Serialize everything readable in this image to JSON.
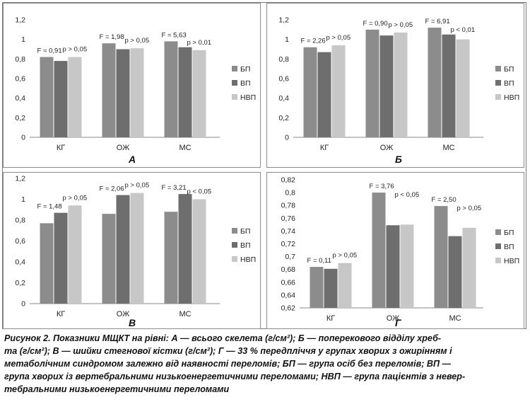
{
  "colors": {
    "bp": "#8c8c8c",
    "vp": "#6e6e6e",
    "nvp": "#c7c7c7",
    "axis": "#888888",
    "text": "#222222"
  },
  "chart_data": [
    {
      "panel": "А",
      "type": "bar",
      "categories": [
        "КГ",
        "ОЖ",
        "МС"
      ],
      "series": [
        {
          "name": "БП",
          "values": [
            0.82,
            0.96,
            0.98
          ]
        },
        {
          "name": "ВП",
          "values": [
            0.78,
            0.9,
            0.92
          ]
        },
        {
          "name": "НВП",
          "values": [
            0.82,
            0.91,
            0.89
          ]
        }
      ],
      "ylim": [
        0,
        1.2
      ],
      "yticks": [
        "0",
        "0,2",
        "0,4",
        "0,6",
        "0,8",
        "1",
        "1,2"
      ],
      "annotations": [
        "F = 0,91",
        "p > 0,05",
        "F = 1,98",
        "p > 0,05",
        "F = 5,63",
        "p > 0,01"
      ],
      "legend": "right"
    },
    {
      "panel": "Б",
      "type": "bar",
      "categories": [
        "КГ",
        "ОЖ",
        "МС"
      ],
      "series": [
        {
          "name": "БП",
          "values": [
            0.92,
            1.1,
            1.12
          ]
        },
        {
          "name": "ВП",
          "values": [
            0.87,
            1.04,
            1.05
          ]
        },
        {
          "name": "НВП",
          "values": [
            0.94,
            1.07,
            1.0
          ]
        }
      ],
      "ylim": [
        0,
        1.2
      ],
      "yticks": [
        "0",
        "0,2",
        "0,4",
        "0,6",
        "0,8",
        "1",
        "1,2"
      ],
      "annotations": [
        "F = 2,26",
        "p > 0,05",
        "F = 0,90",
        "p > 0,05",
        "F = 6,91",
        "p < 0,01"
      ],
      "legend": "right"
    },
    {
      "panel": "В",
      "type": "bar",
      "categories": [
        "КГ",
        "ОЖ",
        "МС"
      ],
      "series": [
        {
          "name": "БП",
          "values": [
            0.77,
            0.86,
            0.88
          ]
        },
        {
          "name": "ВП",
          "values": [
            0.87,
            1.04,
            1.05
          ]
        },
        {
          "name": "НВП",
          "values": [
            0.94,
            1.06,
            1.0
          ]
        }
      ],
      "ylim": [
        0,
        1.2
      ],
      "yticks": [
        "0",
        "0,2",
        "0,4",
        "0,6",
        "0,8",
        "1",
        "1,2"
      ],
      "annotations": [
        "F = 1,48",
        "p > 0,05",
        "F = 2,06",
        "p > 0,05",
        "F = 3,21",
        "p < 0,05"
      ],
      "legend": "right"
    },
    {
      "panel": "Г",
      "type": "bar",
      "categories": [
        "КГ",
        "ОЖ",
        "МС"
      ],
      "series": [
        {
          "name": "БП",
          "values": [
            0.684,
            0.8,
            0.779
          ]
        },
        {
          "name": "ВП",
          "values": [
            0.681,
            0.749,
            0.732
          ]
        },
        {
          "name": "НВП",
          "values": [
            0.69,
            0.75,
            0.745
          ]
        }
      ],
      "ylim": [
        0.62,
        0.82
      ],
      "yticks": [
        "0,62",
        "0,64",
        "0,66",
        "0,68",
        "0,7",
        "0,72",
        "0,74",
        "0,76",
        "0,78",
        "0,8",
        "0,82"
      ],
      "annotations": [
        "F = 0,11",
        "p > 0,05",
        "F = 3,76",
        "p < 0,05",
        "F = 2,50",
        "p > 0,05"
      ],
      "legend": "right"
    }
  ],
  "caption": {
    "lines": [
      "Рисунок 2. Показники МЩКТ на рівні: А — всього скелета (г/см²); Б — поперекового відділу хреб-",
      "та (г/см²); В — шийки стегнової кістки (г/см²); Г — 33 % передпліччя у групах хворих з ожирінням і",
      "метаболічним синдромом залежно від наявності переломів; БП — група осіб без переломів; ВП —",
      "група хворих із вертебральними низькоенергетичними переломами; НВП — група пацієнтів з невер-",
      "тебральними низькоенергетичними переломами"
    ]
  }
}
